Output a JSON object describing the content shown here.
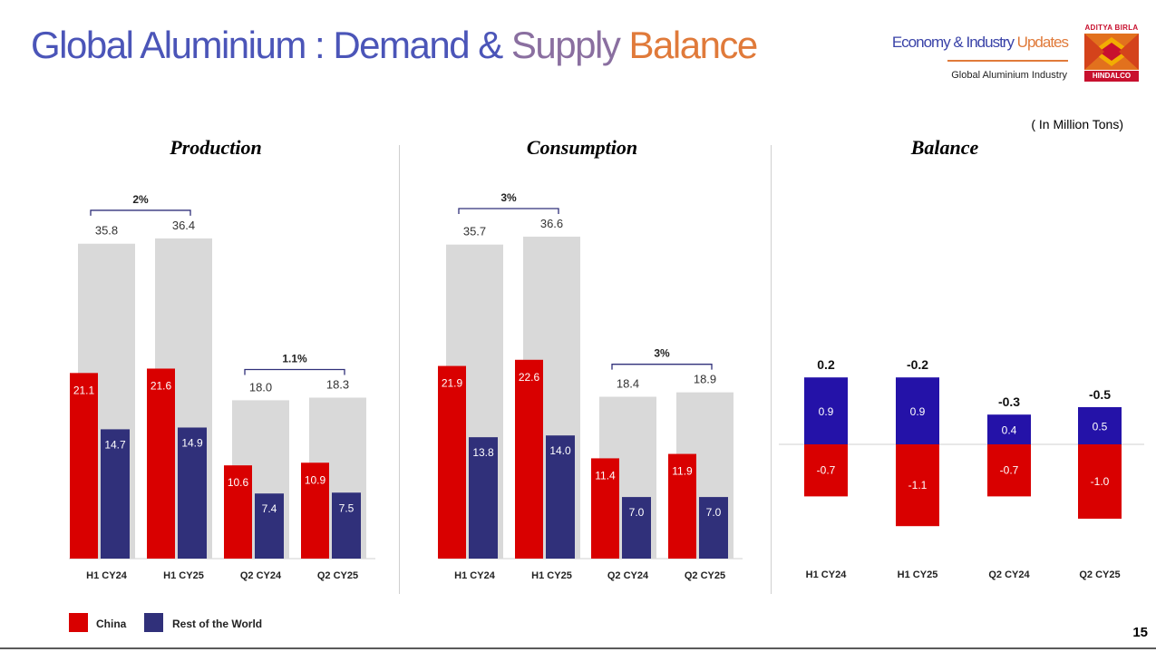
{
  "header": {
    "title_part1": "Global Aluminium :  Demand & ",
    "title_part2": "Supply ",
    "title_part3": "Balance",
    "brand_title_a": "Economy & Industry ",
    "brand_title_b": "Updates",
    "brand_subtitle": "Global Aluminium Industry",
    "logo_top": "ADITYA BIRLA",
    "logo_bottom": "HINDALCO",
    "unit": "( In Million Tons)"
  },
  "legend": {
    "china": "China",
    "rest": "Rest of the World"
  },
  "page_number": "15",
  "colors": {
    "china": "#d90000",
    "rest": "#30307a",
    "total": "#d9d9d9",
    "balance_rest": "#2412a8",
    "balance_china": "#d90000"
  },
  "chart_data": [
    {
      "type": "bar",
      "title": "Production",
      "categories": [
        "H1 CY24",
        "H1 CY25",
        "Q2 CY24",
        "Q2 CY25"
      ],
      "series": [
        {
          "name": "Total",
          "values": [
            35.8,
            36.4,
            18.0,
            18.3
          ],
          "labels": [
            "35.8",
            "36.4",
            "18.0",
            "18.3"
          ]
        },
        {
          "name": "China",
          "values": [
            21.1,
            21.6,
            10.6,
            10.9
          ],
          "labels": [
            "21.1",
            "21.6",
            "10.6",
            "10.9"
          ]
        },
        {
          "name": "Rest of the World",
          "values": [
            14.7,
            14.9,
            7.4,
            7.5
          ],
          "labels": [
            "14.7",
            "14.9",
            "7.4",
            "7.5"
          ]
        }
      ],
      "growth_annotations": [
        {
          "from": 0,
          "to": 1,
          "label": "2%"
        },
        {
          "from": 2,
          "to": 3,
          "label": "1.1%"
        }
      ],
      "ylim": [
        0,
        38
      ]
    },
    {
      "type": "bar",
      "title": "Consumption",
      "categories": [
        "H1 CY24",
        "H1 CY25",
        "Q2 CY24",
        "Q2 CY25"
      ],
      "series": [
        {
          "name": "Total",
          "values": [
            35.7,
            36.6,
            18.4,
            18.9
          ],
          "labels": [
            "35.7",
            "36.6",
            "18.4",
            "18.9"
          ]
        },
        {
          "name": "China",
          "values": [
            21.9,
            22.6,
            11.4,
            11.9
          ],
          "labels": [
            "21.9",
            "22.6",
            "11.4",
            "11.9"
          ]
        },
        {
          "name": "Rest of the World",
          "values": [
            13.8,
            14.0,
            7.0,
            7.0
          ],
          "labels": [
            "13.8",
            "14.0",
            "7.0",
            "7.0"
          ]
        }
      ],
      "growth_annotations": [
        {
          "from": 0,
          "to": 1,
          "label": "3%"
        },
        {
          "from": 2,
          "to": 3,
          "label": "3%"
        }
      ],
      "ylim": [
        0,
        38
      ]
    },
    {
      "type": "bar",
      "title": "Balance",
      "categories": [
        "H1 CY24",
        "H1 CY25",
        "Q2 CY24",
        "Q2 CY25"
      ],
      "series": [
        {
          "name": "Rest of the World",
          "values": [
            0.9,
            0.9,
            0.4,
            0.5
          ],
          "labels": [
            "0.9",
            "0.9",
            "0.4",
            "0.5"
          ]
        },
        {
          "name": "China",
          "values": [
            -0.7,
            -1.1,
            -0.7,
            -1.0
          ],
          "labels": [
            "-0.7",
            "-1.1",
            "-0.7",
            "-1.0"
          ]
        }
      ],
      "net": [
        0.2,
        -0.2,
        -0.3,
        -0.5
      ],
      "net_labels": [
        "0.2",
        "-0.2",
        "-0.3",
        "-0.5"
      ],
      "ylim": [
        -1.4,
        1.3
      ]
    }
  ]
}
